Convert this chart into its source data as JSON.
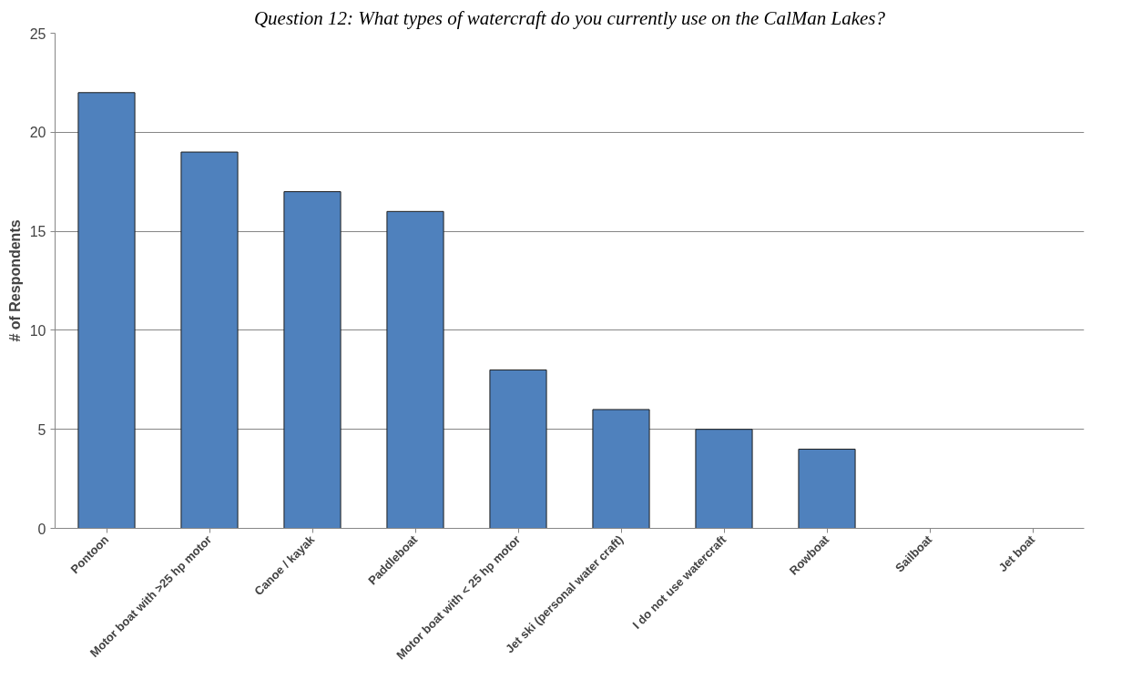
{
  "chart_data": {
    "type": "bar",
    "title": "Question 12: What types of watercraft do you currently use on the CalMan Lakes?",
    "ylabel": "# of Respondents",
    "categories": [
      "Pontoon",
      "Motor boat with >25 hp motor",
      "Canoe / kayak",
      "Paddleboat",
      "Motor boat with < 25 hp motor",
      "Jet ski (personal water craft)",
      "I do not use watercraft",
      "Rowboat",
      "Sailboat",
      "Jet boat"
    ],
    "values": [
      22,
      19,
      17,
      16,
      8,
      6,
      5,
      4,
      0,
      0
    ],
    "color": "#4f81bd",
    "ylim": [
      0,
      25
    ],
    "yticks": [
      0,
      5,
      10,
      15,
      20,
      25
    ],
    "grid": "y"
  }
}
